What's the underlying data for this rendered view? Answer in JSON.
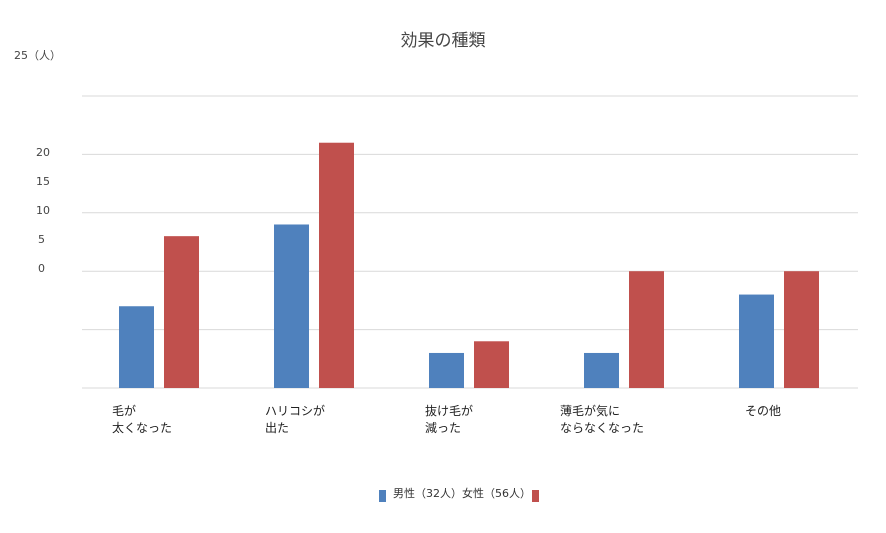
{
  "chart_data": {
    "type": "bar",
    "title": "効果の種類",
    "ylabel": "25（人）",
    "ytick_labels": [
      "20",
      "15",
      "10",
      "5",
      "0"
    ],
    "categories": [
      [
        "毛が",
        "太くなった"
      ],
      [
        "ハリコシが",
        "出た"
      ],
      [
        "抜け毛が",
        "減った"
      ],
      [
        "薄毛が気に",
        "ならなくなった"
      ],
      [
        "その他"
      ]
    ],
    "ylim": [
      0,
      25
    ],
    "grid": true,
    "legend_position": "bottom",
    "series": [
      {
        "name": "男性（32人）",
        "color": "#4f81bd",
        "values": [
          7,
          14,
          3,
          3,
          8
        ]
      },
      {
        "name": "女性（56人）",
        "color": "#c0504d",
        "values": [
          13,
          21,
          4,
          10,
          10
        ]
      }
    ]
  }
}
